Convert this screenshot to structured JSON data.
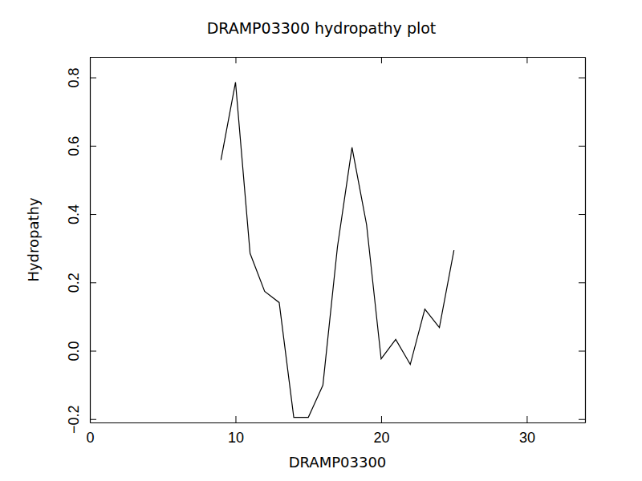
{
  "chart_data": {
    "type": "line",
    "title": "DRAMP03300 hydropathy plot",
    "x_label": "DRAMP03300",
    "y_label": "Hydropathy",
    "x": [
      9,
      10,
      11,
      12,
      13,
      14,
      15,
      16,
      17,
      18,
      19,
      20,
      21,
      22,
      23,
      24,
      25
    ],
    "values": [
      0.558,
      0.786,
      0.285,
      0.174,
      0.141,
      -0.195,
      -0.195,
      -0.101,
      0.304,
      0.595,
      0.369,
      -0.024,
      0.033,
      -0.04,
      0.122,
      0.068,
      0.294
    ],
    "color": "#000000",
    "xlim": [
      0,
      34
    ],
    "xticks": [
      0,
      10,
      20,
      30
    ],
    "ylim": [
      -0.21,
      0.86
    ],
    "yticks": [
      {
        "value": -0.2,
        "label": "−0.2"
      },
      {
        "value": 0,
        "label": "0.0"
      },
      {
        "value": 0.2,
        "label": "0.2"
      },
      {
        "value": 0.4,
        "label": "0.4"
      },
      {
        "value": 0.6,
        "label": "0.6"
      },
      {
        "value": 0.8,
        "label": "0.8"
      }
    ],
    "grid": false
  }
}
